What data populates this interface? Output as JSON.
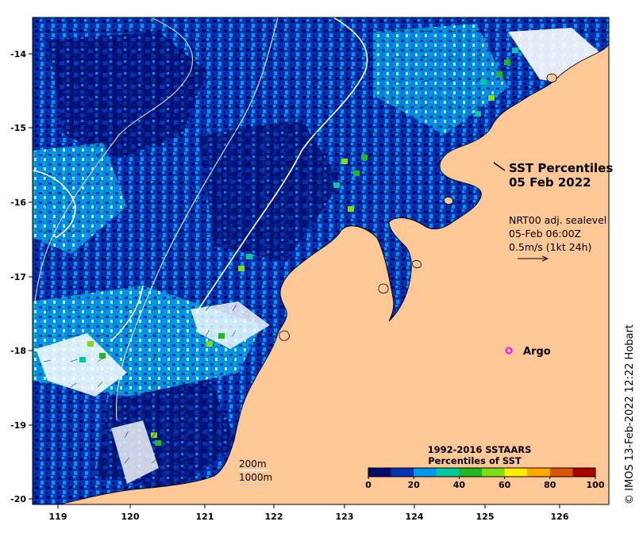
{
  "title": {
    "line1": "SST Percentiles",
    "line2": "05 Feb 2022"
  },
  "current_info": {
    "line1": "NRT00 adj. sealevel",
    "line2": "05-Feb 06:00Z",
    "line3": "0.5m/s (1kt 24h)"
  },
  "contours": {
    "label_200": "200m",
    "label_1000": "1000m"
  },
  "argo": {
    "label": "Argo",
    "color": "#ff00ff"
  },
  "colorbar": {
    "title_line1": "1992-2016 SSTAARS",
    "title_line2": "Percentiles of SST",
    "colors": [
      "#000c6e",
      "#0033b4",
      "#0099ee",
      "#00c9a0",
      "#22b822",
      "#7fdd10",
      "#ffee00",
      "#ffaa00",
      "#dd5500",
      "#aa0000"
    ],
    "tick_labels": [
      "0",
      "20",
      "40",
      "60",
      "80",
      "100"
    ]
  },
  "axes": {
    "x_ticks": [
      "119",
      "120",
      "121",
      "122",
      "123",
      "124",
      "125",
      "126"
    ],
    "y_ticks": [
      "-14",
      "-15",
      "-16",
      "-17",
      "-18",
      "-19",
      "-20"
    ]
  },
  "credit": "© IMOS 13-Feb-2022 12:22 Hobart",
  "land_color": "#ffc896",
  "ocean_colors": [
    "#000c6e",
    "#0033b4",
    "#0099ee"
  ]
}
